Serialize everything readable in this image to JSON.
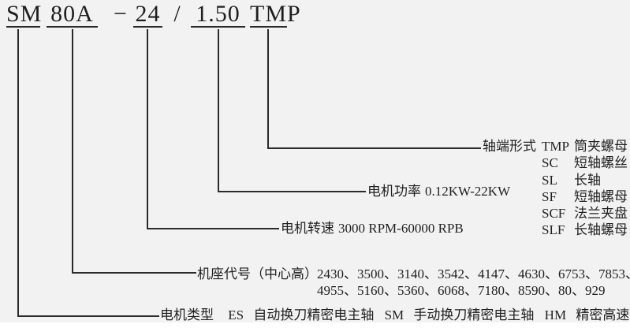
{
  "title": {
    "segments": [
      {
        "text": "SM"
      },
      {
        "text": "80A"
      },
      {
        "text": "−"
      },
      {
        "text": "24"
      },
      {
        "text": "/"
      },
      {
        "text": "1.50"
      },
      {
        "text": "TMP"
      }
    ]
  },
  "shaft_end": {
    "label": "轴端形式",
    "options": [
      {
        "code": "TMP",
        "desc": "筒夹螺母"
      },
      {
        "code": "SC",
        "desc": "短轴螺丝"
      },
      {
        "code": "SL",
        "desc": "长轴"
      },
      {
        "code": "SF",
        "desc": "短轴螺母"
      },
      {
        "code": "SCF",
        "desc": "法兰夹盘"
      },
      {
        "code": "SLF",
        "desc": "长轴螺母"
      }
    ]
  },
  "power": {
    "label": "电机功率",
    "value": "0.12KW-22KW"
  },
  "speed": {
    "label": "电机转速",
    "value": "3000 RPM-60000 RPB"
  },
  "frame": {
    "label": "机座代号（中心高）",
    "numbers_line1": "2430、3500、3140、3542、4147、4630、6753、7853、",
    "numbers_line2": "4955、5160、5360、6068、7180、8590、80、929"
  },
  "motor_type": {
    "label": "电机类型",
    "items": [
      {
        "code": "ES",
        "desc": "自动换刀精密电主轴"
      },
      {
        "code": "SM",
        "desc": "手动换刀精密电主轴"
      },
      {
        "code": "HM",
        "desc": "精密高速电机"
      }
    ]
  },
  "colors": {
    "background": "#f2f2f2",
    "text": "#1f1f1f",
    "line": "#2b2b2b"
  }
}
